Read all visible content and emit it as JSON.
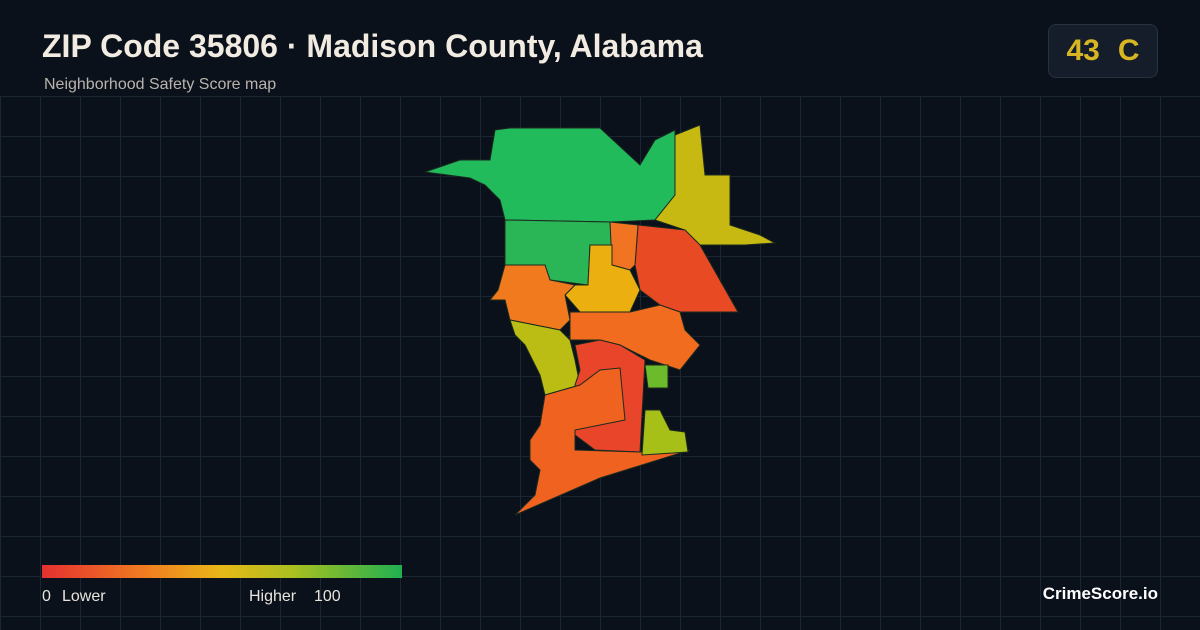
{
  "header": {
    "title": "ZIP Code 35806 · Madison County, Alabama",
    "subtitle": "Neighborhood Safety Score map"
  },
  "badge": {
    "score": 43,
    "grade": "C"
  },
  "legend": {
    "min": 0,
    "low_label": "Lower",
    "high_label": "Higher",
    "max": 100
  },
  "footer": {
    "brand": "CrimeScore.io"
  }
}
